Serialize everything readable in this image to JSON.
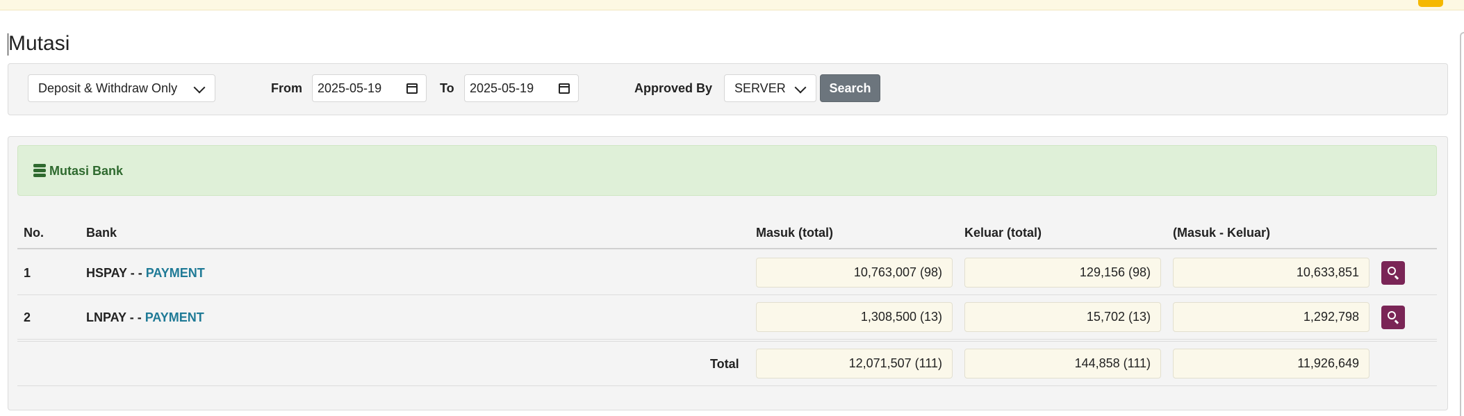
{
  "page": {
    "title": "Mutasi"
  },
  "filters": {
    "type_select": {
      "value": "Deposit & Withdraw Only"
    },
    "from_label": "From",
    "from_date": "2025-05-19",
    "to_label": "To",
    "to_date": "2025-05-19",
    "approved_label": "Approved By",
    "approved_select": {
      "value": "SERVER"
    },
    "search_label": "Search"
  },
  "panel": {
    "title": "Mutasi Bank",
    "icon": "database-icon"
  },
  "table": {
    "headers": {
      "no": "No.",
      "bank": "Bank",
      "masuk": "Masuk (total)",
      "keluar": "Keluar (total)",
      "diff": "(Masuk - Keluar)"
    },
    "rows": [
      {
        "no": "1",
        "bank": "HSPAY",
        "sep": " - - ",
        "type": "PAYMENT",
        "masuk": "10,763,007 (98)",
        "keluar": "129,156 (98)",
        "diff": "10,633,851"
      },
      {
        "no": "2",
        "bank": "LNPAY",
        "sep": " - - ",
        "type": "PAYMENT",
        "masuk": "1,308,500 (13)",
        "keluar": "15,702 (13)",
        "diff": "1,292,798"
      }
    ],
    "total": {
      "label": "Total",
      "masuk": "12,071,507 (111)",
      "keluar": "144,858 (111)",
      "diff": "11,926,649"
    }
  },
  "colors": {
    "accent_button": "#7a2556",
    "header_green": "#dff0d8",
    "link": "#1f7a96",
    "search_button": "#6c757d"
  }
}
